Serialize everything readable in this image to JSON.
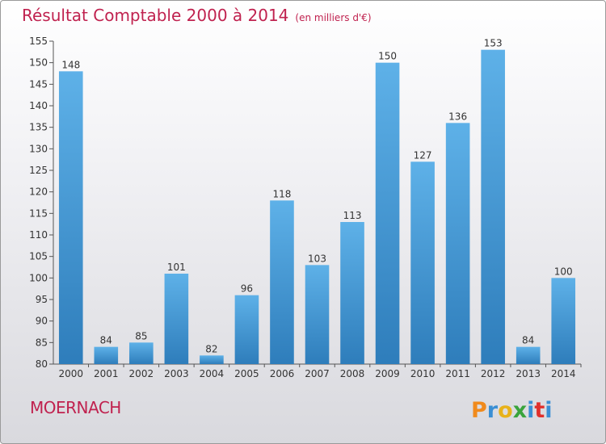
{
  "header": {
    "title": "Résultat Comptable 2000 à 2014",
    "subtitle": "(en milliers d'€)"
  },
  "footer": {
    "town": "MOERNACH",
    "brand": "Proxiti"
  },
  "colors": {
    "accent": "#c0224f",
    "bar_top": "#5aaee6",
    "bar_bottom": "#2f7fbd"
  },
  "chart_data": {
    "type": "bar",
    "title": "Résultat Comptable 2000 à 2014",
    "subtitle": "(en milliers d'€)",
    "categories": [
      "2000",
      "2001",
      "2002",
      "2003",
      "2004",
      "2005",
      "2006",
      "2007",
      "2008",
      "2009",
      "2010",
      "2011",
      "2012",
      "2013",
      "2014"
    ],
    "values": [
      148,
      84,
      85,
      101,
      82,
      96,
      118,
      103,
      113,
      150,
      127,
      136,
      153,
      84,
      100
    ],
    "ylim": [
      80,
      155
    ],
    "yticks": [
      80,
      85,
      90,
      95,
      100,
      105,
      110,
      115,
      120,
      125,
      130,
      135,
      140,
      145,
      150,
      155
    ],
    "xlabel": "",
    "ylabel": "",
    "grid": false
  }
}
